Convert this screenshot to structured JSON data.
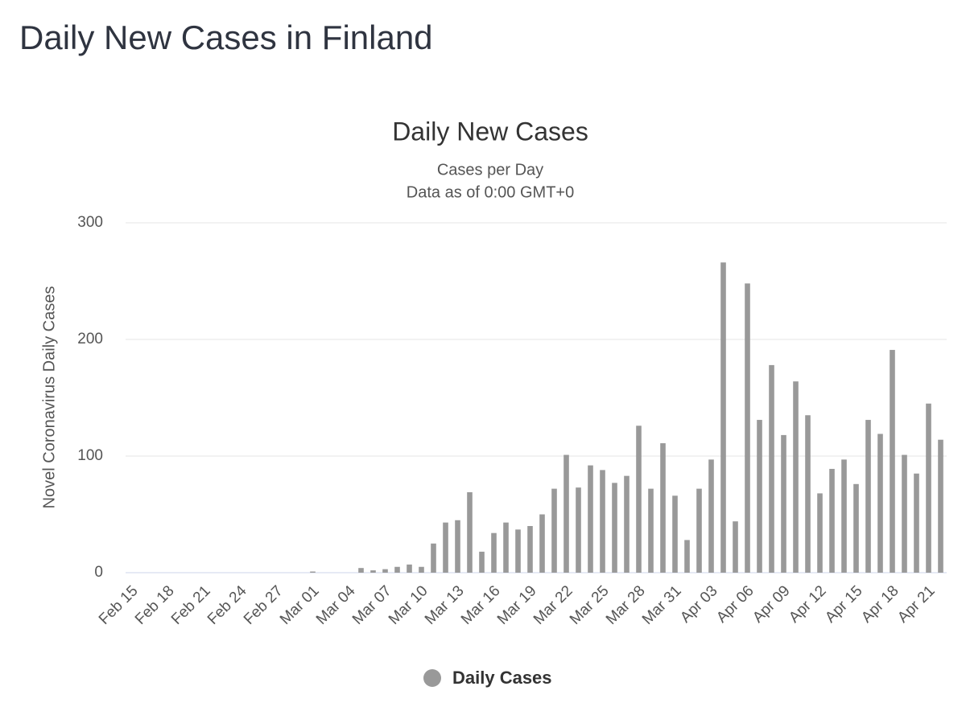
{
  "header": {
    "title": "Daily New Cases in Finland"
  },
  "chart_data": {
    "type": "bar",
    "title": "Daily New Cases",
    "subtitle": [
      "Cases per Day",
      "Data as of 0:00 GMT+0"
    ],
    "y_label": "Novel Coronavirus Daily Cases",
    "categories": [
      "Feb 15",
      null,
      null,
      "Feb 18",
      null,
      null,
      "Feb 21",
      null,
      null,
      "Feb 24",
      null,
      null,
      "Feb 27",
      null,
      null,
      "Mar 01",
      null,
      null,
      "Mar 04",
      null,
      null,
      "Mar 07",
      null,
      null,
      "Mar 10",
      null,
      null,
      "Mar 13",
      null,
      null,
      "Mar 16",
      null,
      null,
      "Mar 19",
      null,
      null,
      "Mar 22",
      null,
      null,
      "Mar 25",
      null,
      null,
      "Mar 28",
      null,
      null,
      "Mar 31",
      null,
      null,
      "Apr 03",
      null,
      null,
      "Apr 06",
      null,
      null,
      "Apr 09",
      null,
      null,
      "Apr 12",
      null,
      null,
      "Apr 15",
      null,
      null,
      "Apr 18",
      null,
      null,
      "Apr 21",
      null
    ],
    "series": [
      {
        "name": "Daily Cases",
        "color": "#999999",
        "values": [
          0,
          0,
          0,
          0,
          0,
          0,
          0,
          0,
          0,
          0,
          0,
          0,
          0,
          0,
          0,
          1,
          0,
          0,
          0,
          4,
          2,
          3,
          5,
          7,
          5,
          25,
          43,
          45,
          69,
          18,
          34,
          43,
          37,
          40,
          50,
          72,
          101,
          73,
          92,
          88,
          77,
          83,
          126,
          72,
          111,
          66,
          28,
          72,
          97,
          266,
          44,
          248,
          131,
          178,
          118,
          164,
          135,
          68,
          89,
          97,
          76,
          131,
          119,
          191,
          101,
          85,
          145,
          114
        ]
      }
    ],
    "ylim": [
      0,
      300
    ],
    "yticks": [
      0,
      100,
      200,
      300
    ],
    "grid": true,
    "legend": "bottom"
  }
}
